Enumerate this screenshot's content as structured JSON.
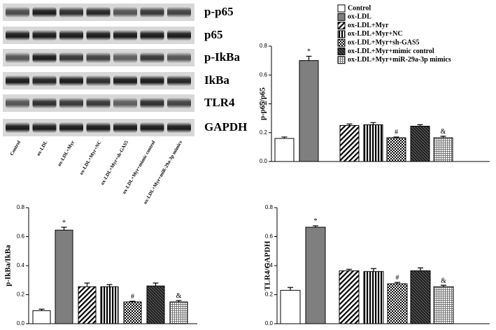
{
  "blot": {
    "proteins": [
      "p-p65",
      "p65",
      "p-IkBa",
      "IkBa",
      "TLR4",
      "GAPDH"
    ],
    "lanes": [
      "Control",
      "ox-LDL",
      "ox-LDL+Myr",
      "ox-LDL+Myr+NC",
      "ox-LDL+Myr+sh-GAS5",
      "ox-LDL+Myr+mimic control",
      "ox-LDL+Myr+miR-29a-3p mimics"
    ]
  },
  "legend": {
    "entries": [
      "Control",
      "ox-LDL",
      "ox-LDL+Myr",
      "ox-LDL+Myr+NC",
      "ox-LDL+Myr+sh-GAS5",
      "ox-LDL+Myr+mimic control",
      "ox-LDL+Myr+miR-29a-3p mimics"
    ],
    "patterns": [
      "none",
      "solid",
      "diagonal",
      "vertical",
      "checker",
      "dense-diagonal",
      "grid"
    ],
    "color": "#7f7f7f",
    "corner": "upper right"
  },
  "chart_data": [
    {
      "type": "bar",
      "ylabel": "p-p65/p65",
      "values": [
        0.16,
        0.7,
        0.25,
        0.255,
        0.165,
        0.245,
        0.165
      ],
      "errors": [
        0.01,
        0.03,
        0.01,
        0.015,
        0.005,
        0.01,
        0.01
      ],
      "annotations": [
        null,
        "*",
        null,
        null,
        "#",
        null,
        "&"
      ],
      "ylim": [
        0,
        0.8
      ],
      "yticks": [
        {
          "value": 0,
          "label": "0.0"
        },
        0.2,
        0.4,
        0.6,
        0.8
      ]
    },
    {
      "type": "bar",
      "ylabel": "p-IkBa/IkBa",
      "values": [
        0.09,
        0.645,
        0.255,
        0.255,
        0.15,
        0.26,
        0.15
      ],
      "errors": [
        0.01,
        0.02,
        0.025,
        0.015,
        0.005,
        0.02,
        0.01
      ],
      "annotations": [
        null,
        "*",
        null,
        null,
        "#",
        null,
        "&"
      ],
      "ylim": [
        0,
        0.8
      ],
      "yticks": [
        {
          "value": 0,
          "label": "0.0"
        },
        0.2,
        0.4,
        0.6,
        0.8
      ]
    },
    {
      "type": "bar",
      "ylabel": "TLR4/GAPDH",
      "values": [
        0.23,
        0.665,
        0.365,
        0.36,
        0.275,
        0.365,
        0.255
      ],
      "errors": [
        0.02,
        0.01,
        0.01,
        0.02,
        0.01,
        0.02,
        0.01
      ],
      "annotations": [
        null,
        "*",
        null,
        null,
        "#",
        null,
        "&"
      ],
      "ylim": [
        0,
        0.8
      ],
      "yticks": [
        {
          "value": 0,
          "label": "0.0"
        },
        0.2,
        0.4,
        0.6,
        0.8
      ]
    }
  ]
}
